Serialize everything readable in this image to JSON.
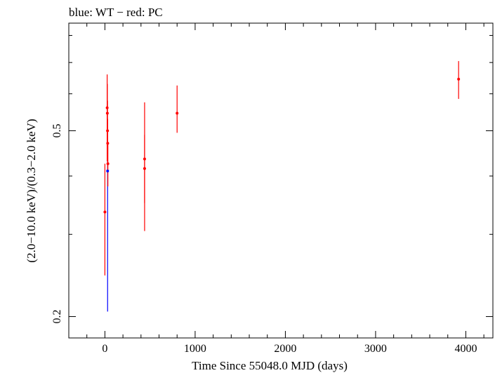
{
  "chart_data": {
    "type": "scatter",
    "title": "blue: WT − red: PC",
    "xlabel": "Time Since 55048.0 MJD (days)",
    "ylabel": "(2.0−10.0 keV)/(0.3−2.0 keV)",
    "xlim": [
      -400,
      4300
    ],
    "ylim": [
      0.18,
      0.85
    ],
    "y_scale": "log",
    "grid": false,
    "x_ticks": [
      0,
      1000,
      2000,
      3000,
      4000
    ],
    "x_tick_labels": [
      "0",
      "1000",
      "2000",
      "3000",
      "4000"
    ],
    "y_ticks": [
      0.2,
      0.5
    ],
    "y_tick_labels": [
      "0.2",
      "0.5"
    ],
    "series": [
      {
        "name": "WT",
        "color": "#0000ff",
        "points": [
          {
            "x": 30,
            "y": 0.41,
            "ylow": 0.205,
            "yhigh": 0.44
          }
        ]
      },
      {
        "name": "PC",
        "color": "#ff0000",
        "points": [
          {
            "x": 0,
            "y": 0.335,
            "ylow": 0.245,
            "yhigh": 0.425
          },
          {
            "x": 25,
            "y": 0.56,
            "ylow": 0.43,
            "yhigh": 0.66
          },
          {
            "x": 27,
            "y": 0.545,
            "ylow": 0.44,
            "yhigh": 0.63
          },
          {
            "x": 29,
            "y": 0.5,
            "ylow": 0.43,
            "yhigh": 0.58
          },
          {
            "x": 31,
            "y": 0.47,
            "ylow": 0.41,
            "yhigh": 0.53
          },
          {
            "x": 33,
            "y": 0.425,
            "ylow": 0.38,
            "yhigh": 0.47
          },
          {
            "x": 440,
            "y": 0.435,
            "ylow": 0.305,
            "yhigh": 0.575
          },
          {
            "x": 440,
            "y": 0.415,
            "ylow": 0.35,
            "yhigh": 0.49
          },
          {
            "x": 800,
            "y": 0.545,
            "ylow": 0.495,
            "yhigh": 0.625
          },
          {
            "x": 3920,
            "y": 0.645,
            "ylow": 0.585,
            "yhigh": 0.705
          }
        ]
      }
    ]
  }
}
